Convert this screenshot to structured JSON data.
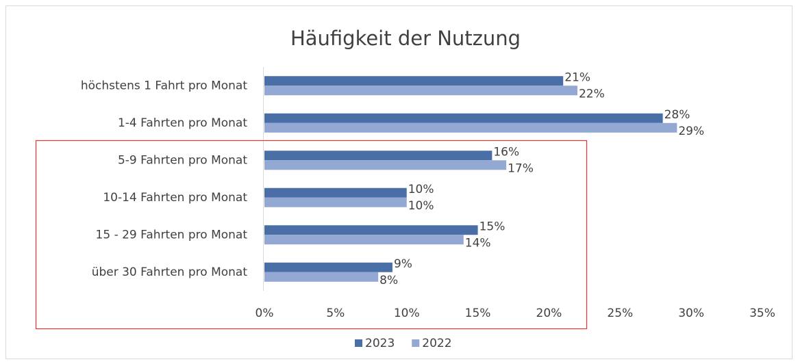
{
  "chart_data": {
    "type": "bar",
    "orientation": "horizontal",
    "title": "Häufigkeit der Nutzung",
    "categories": [
      "höchstens 1 Fahrt pro Monat",
      "1-4 Fahrten pro Monat",
      "5-9 Fahrten pro Monat",
      "10-14 Fahrten pro Monat",
      "15 - 29 Fahrten pro Monat",
      "über 30 Fahrten pro Monat"
    ],
    "series": [
      {
        "name": "2023",
        "color": "#4a6ea6",
        "values": [
          21,
          28,
          16,
          10,
          15,
          9
        ],
        "value_labels": [
          "21%",
          "28%",
          "16%",
          "10%",
          "15%",
          "9%"
        ]
      },
      {
        "name": "2022",
        "color": "#94a8d4",
        "values": [
          22,
          29,
          17,
          10,
          14,
          8
        ],
        "value_labels": [
          "22%",
          "29%",
          "17%",
          "10%",
          "14%",
          "8%"
        ]
      }
    ],
    "xlim": [
      0,
      35
    ],
    "xticks": [
      {
        "value": 0,
        "label": "0%"
      },
      {
        "value": 5,
        "label": "5%"
      },
      {
        "value": 10,
        "label": "10%"
      },
      {
        "value": 15,
        "label": "15%"
      },
      {
        "value": 20,
        "label": "20%"
      },
      {
        "value": 25,
        "label": "25%"
      },
      {
        "value": 30,
        "label": "30%"
      },
      {
        "value": 35,
        "label": "35%"
      }
    ],
    "grid": false,
    "legend": "bottom"
  }
}
